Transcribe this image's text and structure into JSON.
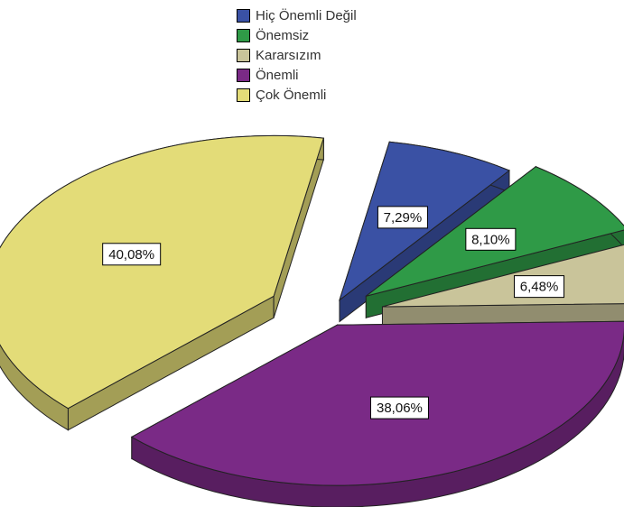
{
  "chart_data": {
    "type": "pie",
    "style": "3d-exploded",
    "legend_position": "top",
    "slices": [
      {
        "label": "Hiç Önemli Değil",
        "value": 7.29,
        "display": "7,29%",
        "color": "#3a51a4"
      },
      {
        "label": "Önemsiz",
        "value": 8.1,
        "display": "8,10%",
        "color": "#2f9a47"
      },
      {
        "label": "Kararsızım",
        "value": 6.48,
        "display": "6,48%",
        "color": "#c9c49a"
      },
      {
        "label": "Önemli",
        "value": 38.06,
        "display": "38,06%",
        "color": "#7a2a86"
      },
      {
        "label": "Çok Önemli",
        "value": 40.08,
        "display": "40,08%",
        "color": "#e3dc78"
      }
    ]
  }
}
